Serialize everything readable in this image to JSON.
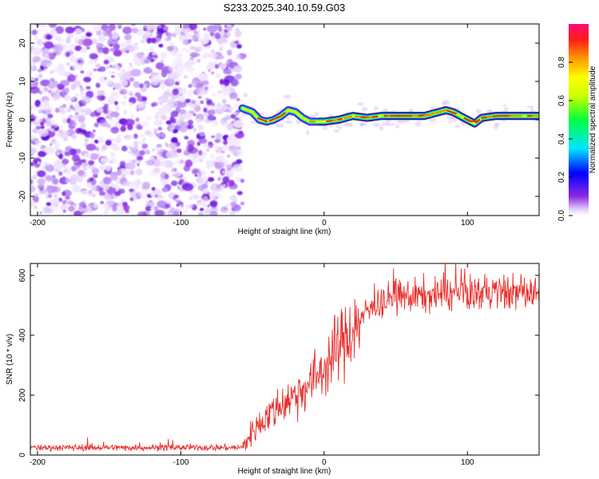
{
  "title": "S233.2025.340.10.59.G03",
  "chart_data": [
    {
      "type": "heatmap",
      "xlabel": "Height of straight line (km)",
      "ylabel": "Frequency (Hz)",
      "xlim": [
        -205,
        150
      ],
      "ylim": [
        -25,
        25
      ],
      "xticks": [
        -200,
        -100,
        0,
        100
      ],
      "yticks": [
        -20,
        -10,
        0,
        10,
        20
      ],
      "colorbar": {
        "label": "Normalized spectral amplitude",
        "range": [
          0,
          1
        ],
        "ticks": [
          "0.0",
          "0.2",
          "0.4",
          "0.6",
          "0.8"
        ],
        "tick_values": [
          0.0,
          0.2,
          0.4,
          0.6,
          0.8
        ]
      },
      "noise_region_x": [
        -205,
        -57
      ],
      "ridge": {
        "x": [
          -57,
          -50,
          -45,
          -40,
          -35,
          -30,
          -25,
          -20,
          -15,
          -10,
          -5,
          0,
          10,
          20,
          30,
          40,
          50,
          60,
          70,
          75,
          80,
          85,
          90,
          95,
          100,
          105,
          110,
          120,
          130,
          140,
          150
        ],
        "freq_hz": [
          3,
          2,
          0,
          -0.5,
          0,
          1,
          2.5,
          2,
          0.5,
          -0.5,
          -0.5,
          -0.5,
          0,
          1,
          0.5,
          1,
          1,
          1,
          1,
          1.5,
          2,
          2.5,
          2,
          1,
          0,
          -1,
          0.5,
          1,
          1,
          1,
          1
        ]
      }
    },
    {
      "type": "line",
      "xlabel": "Height of straight line (km)",
      "ylabel": "SNR (10 * v/v)",
      "xlim": [
        -205,
        150
      ],
      "ylim": [
        0,
        640
      ],
      "xticks": [
        -200,
        -100,
        0,
        100
      ],
      "yticks": [
        0,
        200,
        400,
        600
      ],
      "series": [
        {
          "name": "SNR",
          "color": "#e8302c",
          "envelope_x": [
            -205,
            -100,
            -57,
            -50,
            -40,
            -30,
            -20,
            -10,
            0,
            10,
            20,
            25,
            30,
            40,
            50,
            60,
            80,
            100,
            120,
            150
          ],
          "envelope_y": [
            25,
            25,
            25,
            80,
            130,
            170,
            200,
            240,
            290,
            360,
            420,
            450,
            480,
            510,
            530,
            530,
            535,
            540,
            545,
            540
          ]
        }
      ]
    }
  ]
}
